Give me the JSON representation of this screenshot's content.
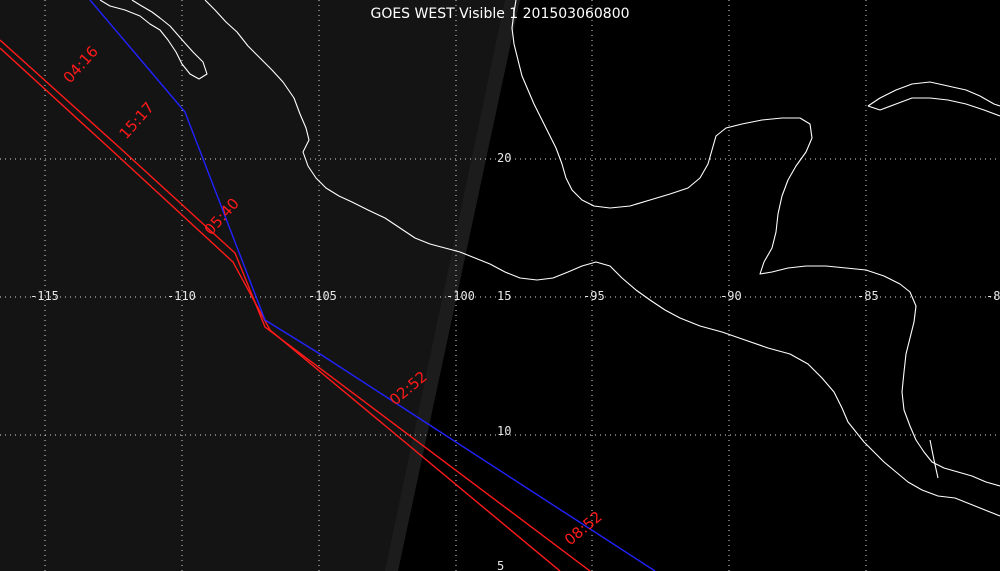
{
  "title": "GOES WEST Visible 1 201503060800",
  "colors": {
    "background": "#000000",
    "night_side": "#141414",
    "grid": "#d8d8d8",
    "coast": "#ffffff",
    "track_red": "#ff1a1a",
    "track_blue": "#2222ff"
  },
  "longitude_labels": [
    "-115",
    "-110",
    "-105",
    "-100",
    "-95",
    "-90",
    "-85",
    "-8"
  ],
  "latitude_labels": [
    "20",
    "15",
    "10",
    "5"
  ],
  "tracks": [
    {
      "id": "red-track",
      "color": "#ff1a1a",
      "times": [
        "04:16",
        "15:17",
        "05:40",
        "08:52"
      ]
    },
    {
      "id": "blue-track",
      "color": "#2222ff",
      "times": [
        "02:52"
      ]
    }
  ]
}
